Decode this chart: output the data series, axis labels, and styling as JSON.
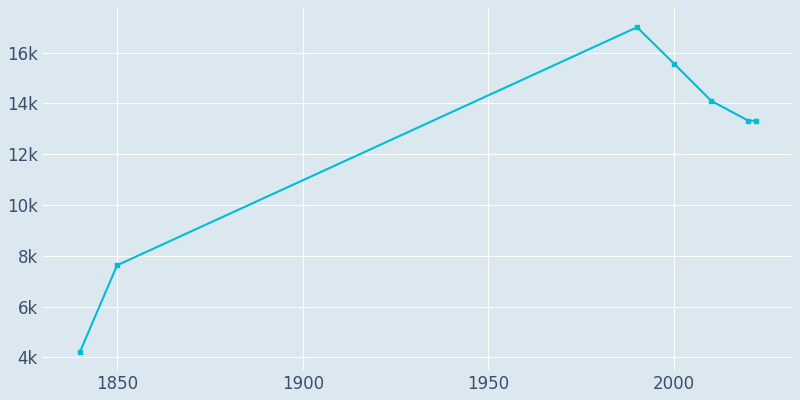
{
  "years": [
    1840,
    1850,
    1990,
    2000,
    2010,
    2020,
    2022
  ],
  "population": [
    4220,
    7630,
    17000,
    15560,
    14100,
    13320,
    13320
  ],
  "line_color": "#00BCD4",
  "background_color": "#dce8f0",
  "plot_background_color": "#dce8f0",
  "grid_color": "#ffffff",
  "tick_label_color": "#3a4e6e",
  "xlim": [
    1830,
    2032
  ],
  "ylim": [
    3500,
    17800
  ],
  "xticks": [
    1850,
    1900,
    1950,
    2000
  ],
  "ytick_labels": [
    "4k",
    "6k",
    "8k",
    "10k",
    "12k",
    "14k",
    "16k"
  ],
  "ytick_values": [
    4000,
    6000,
    8000,
    10000,
    12000,
    14000,
    16000
  ],
  "marker_size": 3,
  "line_width": 1.5
}
